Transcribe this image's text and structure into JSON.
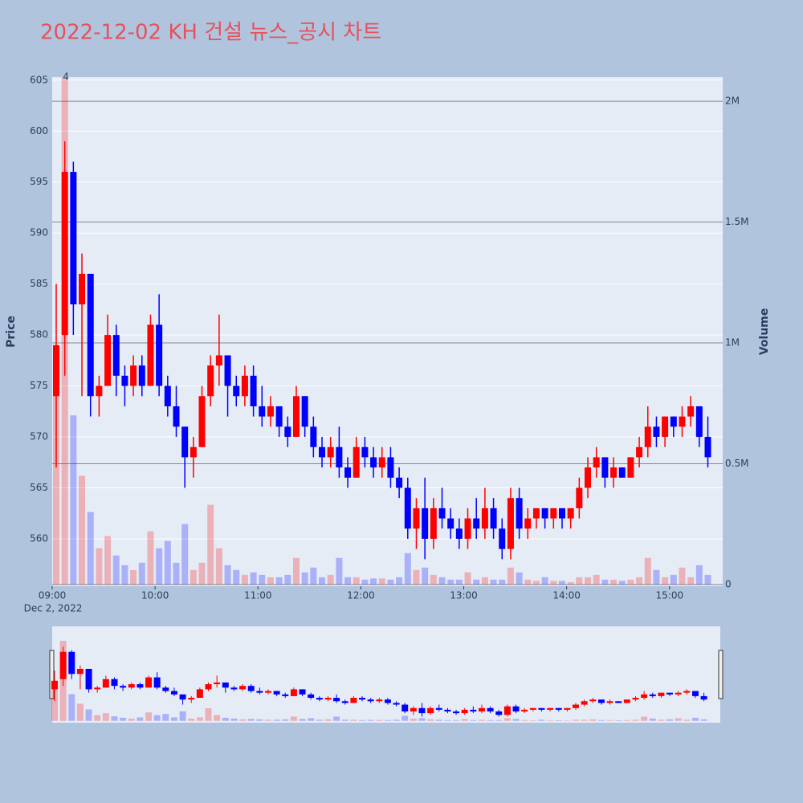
{
  "chart_data": {
    "type": "candlestick",
    "title": "2022-12-02 KH 건설 뉴스_공시 차트",
    "y_axis_label": "Price",
    "y2_axis_label": "Volume",
    "x_date_label": "Dec 2, 2022",
    "annotation": {
      "text": "4",
      "x": "09:08"
    },
    "increasing_color": "#ff0000",
    "decreasing_color": "#0000ff",
    "x": [
      "09:00",
      "09:05",
      "09:10",
      "09:15",
      "09:20",
      "09:25",
      "09:30",
      "09:35",
      "09:40",
      "09:45",
      "09:50",
      "09:55",
      "10:00",
      "10:05",
      "10:10",
      "10:15",
      "10:20",
      "10:25",
      "10:30",
      "10:35",
      "10:40",
      "10:45",
      "10:50",
      "10:55",
      "11:00",
      "11:05",
      "11:10",
      "11:15",
      "11:20",
      "11:25",
      "11:30",
      "11:35",
      "11:40",
      "11:45",
      "11:50",
      "11:55",
      "12:00",
      "12:05",
      "12:10",
      "12:15",
      "12:20",
      "12:25",
      "12:30",
      "12:35",
      "12:40",
      "12:45",
      "12:50",
      "12:55",
      "13:00",
      "13:05",
      "13:10",
      "13:15",
      "13:20",
      "13:25",
      "13:30",
      "13:35",
      "13:40",
      "13:45",
      "13:50",
      "13:55",
      "14:00",
      "14:05",
      "14:10",
      "14:15",
      "14:20",
      "14:25",
      "14:30",
      "14:35",
      "14:40",
      "14:45",
      "14:50",
      "14:55",
      "15:00",
      "15:05",
      "15:10",
      "15:15",
      "15:20"
    ],
    "open": [
      574,
      580,
      596,
      583,
      586,
      574,
      575,
      580,
      576,
      575,
      577,
      575,
      581,
      575,
      573,
      571,
      568,
      569,
      574,
      577,
      578,
      575,
      574,
      576,
      573,
      572,
      573,
      571,
      570,
      574,
      571,
      569,
      568,
      569,
      567,
      566,
      569,
      568,
      567,
      568,
      566,
      565,
      561,
      563,
      560,
      563,
      562,
      561,
      560,
      562,
      561,
      563,
      561,
      559,
      564,
      561,
      562,
      563,
      562,
      563,
      562,
      563,
      565,
      567,
      568,
      566,
      567,
      566,
      568,
      569,
      571,
      570,
      572,
      571,
      572,
      573,
      570
    ],
    "high": [
      585,
      599,
      597,
      588,
      586,
      576,
      582,
      581,
      577,
      578,
      578,
      582,
      584,
      576,
      575,
      571,
      570,
      575,
      578,
      582,
      578,
      576,
      577,
      577,
      575,
      574,
      573,
      572,
      575,
      574,
      572,
      570,
      570,
      571,
      568,
      570,
      570,
      569,
      569,
      569,
      567,
      566,
      564,
      566,
      564,
      565,
      563,
      562,
      563,
      564,
      565,
      564,
      562,
      565,
      565,
      563,
      563,
      563,
      563,
      563,
      563,
      566,
      568,
      569,
      568,
      568,
      567,
      568,
      570,
      573,
      572,
      572,
      572,
      573,
      574,
      573,
      572
    ],
    "low": [
      567,
      576,
      580,
      574,
      572,
      572,
      575,
      574,
      573,
      574,
      574,
      575,
      574,
      572,
      570,
      565,
      566,
      569,
      573,
      575,
      572,
      573,
      573,
      572,
      571,
      571,
      570,
      569,
      570,
      570,
      568,
      567,
      567,
      566,
      565,
      566,
      567,
      566,
      566,
      565,
      564,
      560,
      559,
      558,
      559,
      561,
      560,
      559,
      559,
      560,
      560,
      560,
      558,
      558,
      560,
      560,
      561,
      561,
      561,
      561,
      561,
      562,
      564,
      566,
      565,
      565,
      566,
      566,
      567,
      568,
      569,
      569,
      570,
      570,
      571,
      569,
      567
    ],
    "close": [
      579,
      596,
      583,
      586,
      574,
      575,
      580,
      576,
      575,
      577,
      575,
      581,
      575,
      573,
      571,
      568,
      569,
      574,
      577,
      578,
      575,
      574,
      576,
      573,
      572,
      573,
      571,
      570,
      574,
      571,
      569,
      568,
      569,
      567,
      566,
      569,
      568,
      567,
      568,
      566,
      565,
      561,
      563,
      560,
      563,
      562,
      561,
      560,
      562,
      561,
      563,
      561,
      559,
      564,
      561,
      562,
      563,
      562,
      563,
      562,
      563,
      565,
      567,
      568,
      566,
      567,
      566,
      568,
      569,
      571,
      570,
      572,
      571,
      572,
      573,
      570,
      568
    ],
    "volume": [
      900000,
      2100000,
      700000,
      450000,
      300000,
      150000,
      200000,
      120000,
      80000,
      60000,
      90000,
      220000,
      150000,
      180000,
      90000,
      250000,
      60000,
      90000,
      330000,
      150000,
      80000,
      60000,
      40000,
      50000,
      40000,
      30000,
      30000,
      40000,
      110000,
      50000,
      70000,
      30000,
      40000,
      110000,
      30000,
      30000,
      20000,
      25000,
      25000,
      20000,
      30000,
      130000,
      60000,
      70000,
      40000,
      30000,
      20000,
      20000,
      50000,
      20000,
      30000,
      20000,
      20000,
      70000,
      50000,
      20000,
      15000,
      30000,
      15000,
      15000,
      10000,
      30000,
      30000,
      40000,
      20000,
      20000,
      15000,
      20000,
      30000,
      110000,
      60000,
      30000,
      40000,
      70000,
      30000,
      80000,
      40000
    ],
    "xlim": [
      "09:00",
      "15:31"
    ],
    "xticks": [
      "09:00",
      "10:00",
      "11:00",
      "12:00",
      "13:00",
      "14:00",
      "15:00"
    ],
    "ylim": [
      555.35,
      605.3
    ],
    "yticks": [
      560,
      565,
      570,
      575,
      580,
      585,
      590,
      595,
      600,
      605
    ],
    "y2lim": [
      -7000,
      2100000
    ],
    "y2ticks": [
      0,
      {
        "value": 500000,
        "label": "0.5M"
      },
      {
        "value": 1000000,
        "label": "1M"
      },
      {
        "value": 1500000,
        "label": "1.5M"
      },
      {
        "value": 2000000,
        "label": "2M"
      }
    ]
  }
}
